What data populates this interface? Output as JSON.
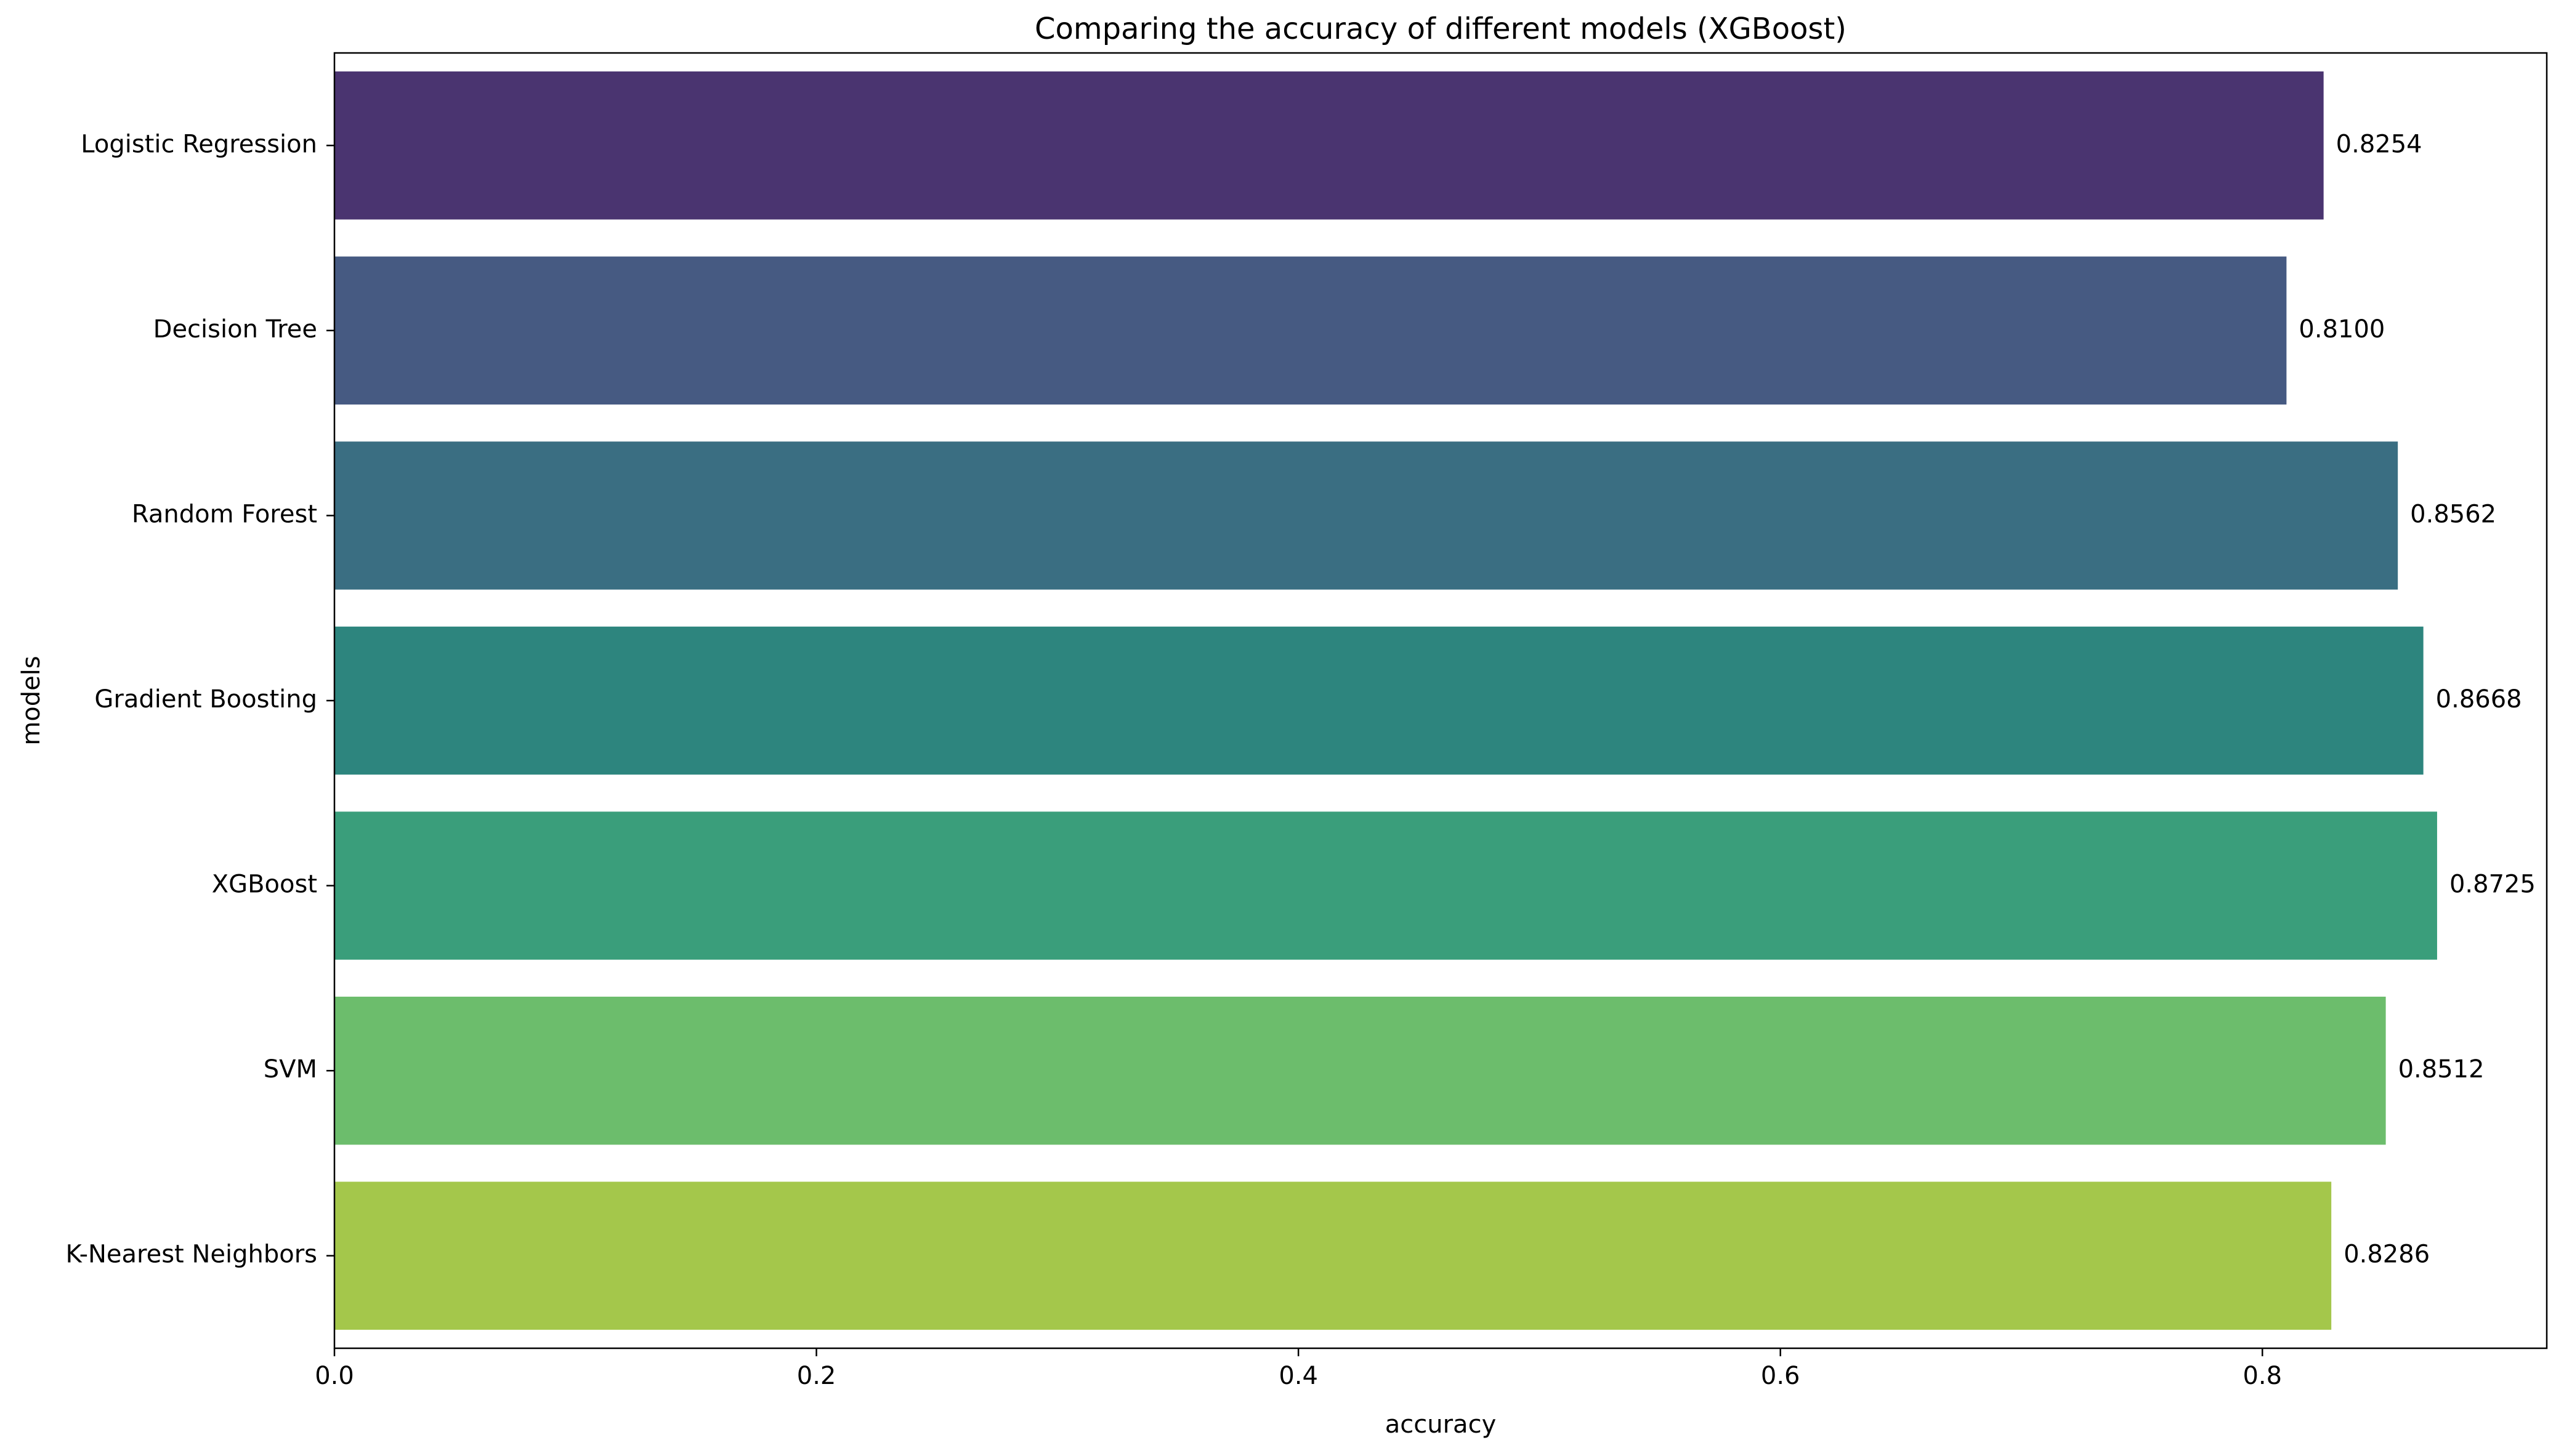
{
  "chart_data": {
    "type": "bar",
    "orientation": "horizontal",
    "title": "Comparing the accuracy of different models (XGBoost)",
    "xlabel": "accuracy",
    "ylabel": "models",
    "xlim": [
      0,
      0.918
    ],
    "grid": false,
    "xticks": [
      0.0,
      0.2,
      0.4,
      0.6,
      0.8
    ],
    "xtick_labels": [
      "0.0",
      "0.2",
      "0.4",
      "0.6",
      "0.8"
    ],
    "categories": [
      "Logistic Regression",
      "Decision Tree",
      "Random Forest",
      "Gradient Boosting",
      "XGBoost",
      "SVM",
      "K-Nearest Neighbors"
    ],
    "values": [
      0.8254,
      0.81,
      0.8562,
      0.8668,
      0.8725,
      0.8512,
      0.8286
    ],
    "value_labels": [
      "0.8254",
      "0.8100",
      "0.8562",
      "0.8668",
      "0.8725",
      "0.8512",
      "0.8286"
    ],
    "colors": [
      "#4a3470",
      "#465a82",
      "#3a6e82",
      "#2d857e",
      "#3a9e7b",
      "#6cbd6c",
      "#a4c74b"
    ]
  }
}
